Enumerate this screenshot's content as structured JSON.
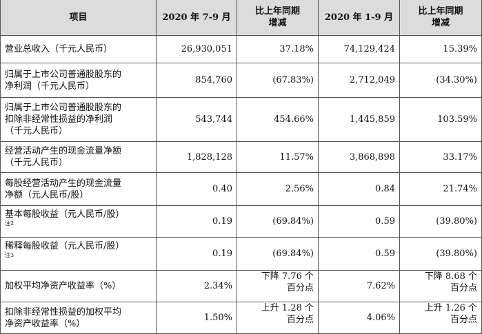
{
  "headers": {
    "item": "项目",
    "q3": "2020 年 7-9 月",
    "q3_yoy_l1": "比上年同期",
    "q3_yoy_l2": "增减",
    "ytd": "2020 年 1-9 月",
    "ytd_yoy_l1": "比上年同期",
    "ytd_yoy_l2": "增减"
  },
  "rows": [
    {
      "label_lines": [
        "营业总收入（千元人民币）"
      ],
      "q3": "26,930,051",
      "q3_yoy": "37.18%",
      "ytd": "74,129,424",
      "ytd_yoy": "15.39%"
    },
    {
      "label_lines": [
        "归属于上市公司普通股股东的",
        "净利润（千元人民币）"
      ],
      "q3": "854,760",
      "q3_yoy": "(67.83%)",
      "ytd": "2,712,049",
      "ytd_yoy": "(34.30%)"
    },
    {
      "label_lines": [
        "归属于上市公司普通股股东的",
        "扣除非经常性损益的净利润",
        "（千元人民币）"
      ],
      "q3": "543,744",
      "q3_yoy": "454.66%",
      "ytd": "1,445,859",
      "ytd_yoy": "103.59%"
    },
    {
      "label_lines": [
        "经营活动产生的现金流量净额",
        "（千元人民币）"
      ],
      "q3": "1,828,128",
      "q3_yoy": "11.57%",
      "ytd": "3,868,898",
      "ytd_yoy": "33.17%"
    },
    {
      "label_lines": [
        "每股经营活动产生的现金流量",
        "净额（元人民币/股）"
      ],
      "q3": "0.40",
      "q3_yoy": "2.56%",
      "ytd": "0.84",
      "ytd_yoy": "21.74%"
    },
    {
      "label_lines": [
        "基本每股收益（元人民币/股）"
      ],
      "footnote": "注2",
      "q3": "0.19",
      "q3_yoy": "(69.84%)",
      "ytd": "0.59",
      "ytd_yoy": "(39.80%)"
    },
    {
      "label_lines": [
        "稀释每股收益（元人民币/股）"
      ],
      "footnote": "注3",
      "q3": "0.19",
      "q3_yoy": "(69.84%)",
      "ytd": "0.59",
      "ytd_yoy": "(39.80%)"
    },
    {
      "label_lines": [
        "加权平均净资产收益率（%）"
      ],
      "q3": "2.34%",
      "q3_yoy_l1": "下降 7.76 个",
      "q3_yoy_l2": "百分点",
      "ytd": "7.62%",
      "ytd_yoy_l1": "下降 8.68 个",
      "ytd_yoy_l2": "百分点"
    },
    {
      "label_lines": [
        "扣除非经常性损益的加权平均",
        "净资产收益率（%）"
      ],
      "q3": "1.50%",
      "q3_yoy_l1": "上升 1.28 个",
      "q3_yoy_l2": "百分点",
      "ytd": "4.06%",
      "ytd_yoy_l1": "上升 1.26 个",
      "ytd_yoy_l2": "百分点"
    }
  ]
}
